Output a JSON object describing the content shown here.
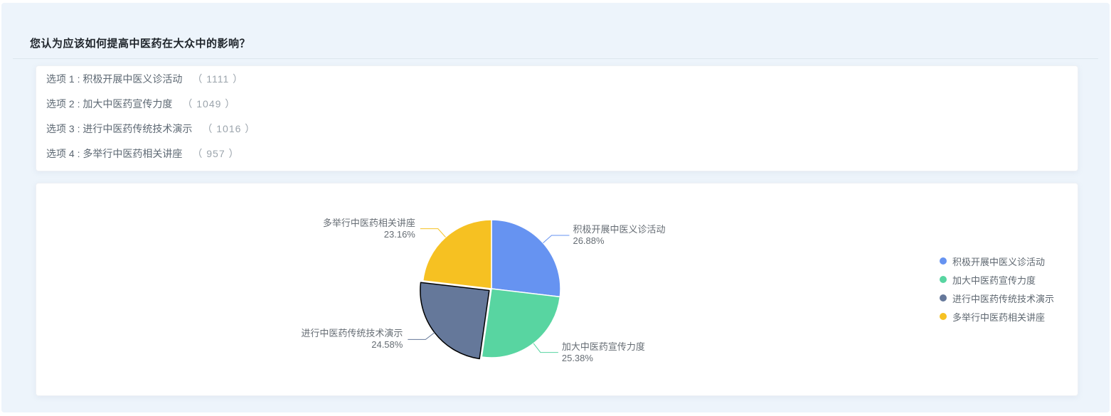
{
  "page": {
    "question_title": "您认为应该如何提高中医药在大众中的影响？"
  },
  "options": [
    {
      "label": "选项 1 : 积极开展中医义诊活动",
      "count": "（ 1111 ）"
    },
    {
      "label": "选项 2 : 加大中医药宣传力度",
      "count": "（ 1049 ）"
    },
    {
      "label": "选项 3 : 进行中医药传统技术演示",
      "count": "（ 1016 ）"
    },
    {
      "label": "选项 4 : 多举行中医药相关讲座",
      "count": "（ 957 ）"
    }
  ],
  "chart_data": {
    "type": "pie",
    "start_angle": "top",
    "clockwise": true,
    "legend_position": "right",
    "selected_border_color": "#000000",
    "slice_border_color": "#ffffff",
    "series": [
      {
        "name": "积极开展中医义诊活动",
        "value": 1111,
        "percent": 26.88,
        "percent_label": "26.88%",
        "color": "#6693F1",
        "selected": false
      },
      {
        "name": "加大中医药宣传力度",
        "value": 1049,
        "percent": 25.38,
        "percent_label": "25.38%",
        "color": "#58D5A1",
        "selected": false
      },
      {
        "name": "进行中医药传统技术演示",
        "value": 1016,
        "percent": 24.58,
        "percent_label": "24.58%",
        "color": "#65789A",
        "selected": true
      },
      {
        "name": "多举行中医药相关讲座",
        "value": 957,
        "percent": 23.16,
        "percent_label": "23.16%",
        "color": "#F6C122",
        "selected": false
      }
    ],
    "legend": [
      "积极开展中医义诊活动",
      "加大中医药宣传力度",
      "进行中医药传统技术演示",
      "多举行中医药相关讲座"
    ]
  },
  "colors": {
    "panel_bg": "#edf4fb",
    "card_bg": "#ffffff",
    "title_text": "#20262c",
    "option_text": "#5d6873",
    "option_count_text": "#9ba4ac",
    "label_text": "#666d74",
    "legend_text": "#5f6871",
    "divider": "#dde6ee"
  }
}
